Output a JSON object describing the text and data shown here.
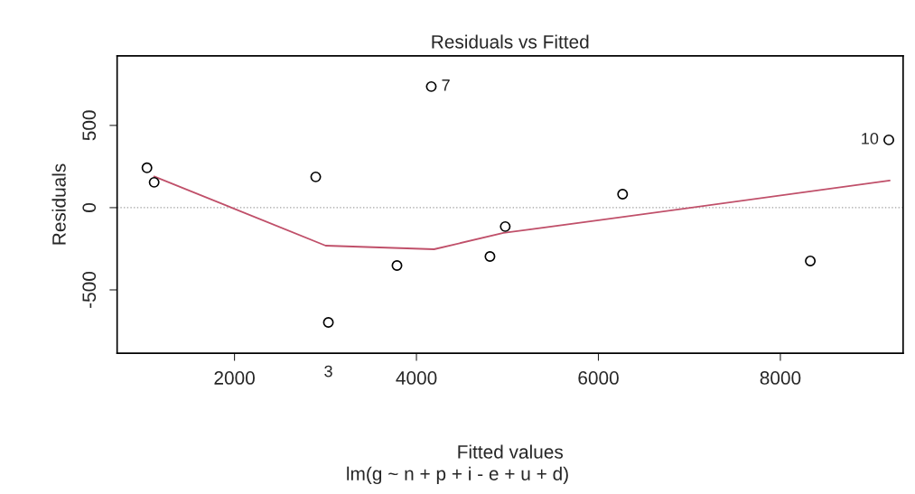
{
  "chart_data": {
    "type": "scatter",
    "title": "Residuals vs Fitted",
    "xlabel": "Fitted values",
    "ylabel": "Residuals",
    "series": [
      {
        "color": "#000000",
        "marker": "circle",
        "x": [
          1038,
          1117,
          2893,
          3032,
          3786,
          4163,
          4808,
          4976,
          6266,
          8329,
          9192
        ],
        "values": [
          242,
          154,
          187,
          -698,
          -352,
          736,
          -297,
          -115,
          82,
          -324,
          412
        ]
      },
      {
        "type": "line",
        "color": "#c0506a",
        "marker": "none",
        "line_style": "solid",
        "x": [
          1117,
          3002,
          4193,
          4956,
          6000,
          9202
        ],
        "values": [
          190,
          -231,
          -253,
          -154,
          -77,
          165
        ]
      }
    ],
    "annotations": [
      {
        "text": "7",
        "x": 4163,
        "y": 736
      },
      {
        "text": "10",
        "x": 9192,
        "y": 412
      },
      {
        "text": "3",
        "x": 3032,
        "y": -698
      },
      "lm(g ~ n + p + i - e + u + d)"
    ],
    "ref_lines": [
      {
        "axis": "y",
        "value": 0,
        "color": "#a0a0a0",
        "line_style": "dotted"
      }
    ],
    "xlim": [
      710,
      9349
    ],
    "ylim": [
      -885,
      923
    ],
    "xticks": [
      2000,
      4000,
      6000,
      8000
    ],
    "yticks": [
      -500,
      0,
      500
    ],
    "grid": false
  }
}
